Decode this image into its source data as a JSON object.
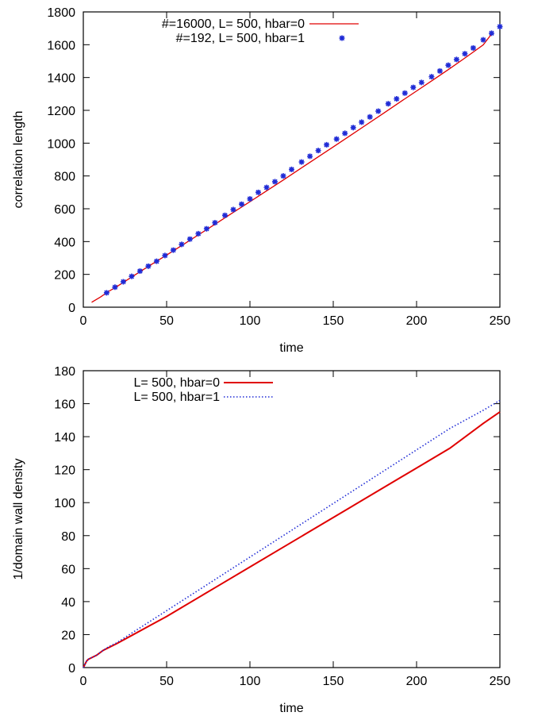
{
  "chart_data": [
    {
      "type": "line",
      "xlabel": "time",
      "ylabel": "correlation length",
      "xlim": [
        0,
        250
      ],
      "ylim": [
        0,
        1800
      ],
      "xticks": [
        0,
        50,
        100,
        150,
        200,
        250
      ],
      "yticks": [
        0,
        200,
        400,
        600,
        800,
        1000,
        1200,
        1400,
        1600,
        1800
      ],
      "grid": false,
      "legend_position": "top-right",
      "series": [
        {
          "name": "#=16000, L= 500, hbar=0",
          "style": "line",
          "color": "#e00000",
          "x": [
            5,
            10,
            15,
            20,
            30,
            40,
            50,
            60,
            70,
            80,
            90,
            100,
            110,
            120,
            130,
            140,
            150,
            160,
            170,
            180,
            190,
            200,
            210,
            220,
            230,
            240,
            245
          ],
          "y": [
            30,
            60,
            95,
            125,
            190,
            255,
            318,
            382,
            447,
            512,
            578,
            643,
            709,
            775,
            843,
            910,
            977,
            1045,
            1113,
            1181,
            1250,
            1318,
            1386,
            1455,
            1526,
            1599,
            1665
          ]
        },
        {
          "name": "#=192, L= 500, hbar=1",
          "style": "points",
          "color": "#1f2bd6",
          "x": [
            14,
            19,
            24,
            29,
            34,
            39,
            44,
            49,
            54,
            59,
            64,
            69,
            74,
            79,
            85,
            90,
            95,
            100,
            105,
            110,
            115,
            120,
            125,
            131,
            136,
            141,
            146,
            152,
            157,
            162,
            167,
            172,
            177,
            183,
            188,
            193,
            198,
            203,
            209,
            214,
            219,
            224,
            229,
            234,
            240,
            245,
            250
          ],
          "y": [
            88,
            122,
            155,
            188,
            220,
            250,
            280,
            315,
            348,
            383,
            415,
            448,
            478,
            515,
            560,
            595,
            628,
            660,
            700,
            730,
            765,
            800,
            840,
            885,
            920,
            955,
            990,
            1025,
            1060,
            1095,
            1128,
            1160,
            1195,
            1240,
            1270,
            1305,
            1340,
            1370,
            1405,
            1440,
            1475,
            1510,
            1545,
            1580,
            1630,
            1670,
            1710
          ]
        }
      ]
    },
    {
      "type": "line",
      "xlabel": "time",
      "ylabel": "1/domain wall density",
      "xlim": [
        0,
        250
      ],
      "ylim": [
        0,
        180
      ],
      "xticks": [
        0,
        50,
        100,
        150,
        200,
        250
      ],
      "yticks": [
        0,
        20,
        40,
        60,
        80,
        100,
        120,
        140,
        160,
        180
      ],
      "grid": false,
      "legend_position": "top-left",
      "series": [
        {
          "name": "L= 500, hbar=0",
          "style": "solid",
          "color": "#e00000",
          "x": [
            0,
            1,
            2,
            3,
            5,
            8,
            10,
            12,
            15,
            20,
            30,
            40,
            50,
            60,
            80,
            100,
            120,
            140,
            160,
            180,
            200,
            220,
            240,
            250
          ],
          "y": [
            0,
            2,
            4,
            5,
            6,
            7.5,
            9,
            10.5,
            12,
            14.5,
            20,
            25.5,
            31,
            37,
            49,
            61,
            73,
            85,
            97,
            109,
            121,
            133,
            148,
            155
          ]
        },
        {
          "name": "L= 500, hbar=1",
          "style": "dotted",
          "color": "#1f2bd6",
          "x": [
            0,
            1,
            2,
            3,
            5,
            8,
            10,
            12,
            15,
            20,
            30,
            40,
            50,
            60,
            80,
            100,
            120,
            140,
            160,
            180,
            200,
            220,
            240,
            250
          ],
          "y": [
            0,
            2,
            4,
            5,
            6,
            7.5,
            9,
            10.5,
            12.5,
            15,
            21.5,
            28,
            34.5,
            41,
            54,
            67,
            80,
            93,
            106,
            119,
            132,
            145,
            156,
            162
          ]
        }
      ]
    }
  ]
}
